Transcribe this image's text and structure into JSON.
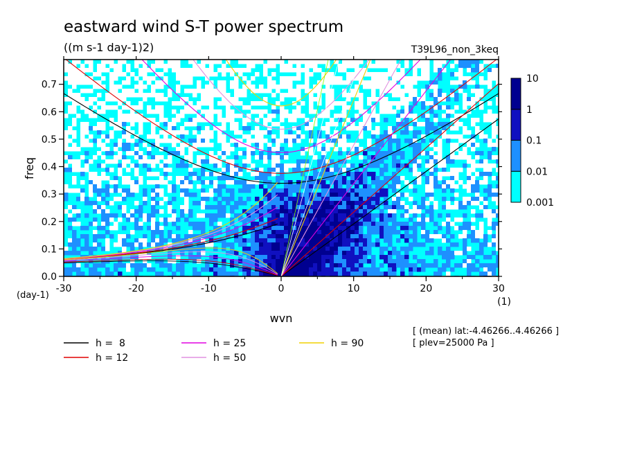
{
  "header": {
    "title": "eastward wind S-T power spectrum",
    "units": "((m s-1 day-1)2)",
    "run_name": "T39L96_non_3keq"
  },
  "meta": {
    "mean_line": "[ (mean) lat:-4.46266..4.46266 ]",
    "plev_line": "[ plev=25000 Pa ]"
  },
  "colors": {
    "level_0_001": "#00ffff",
    "level_0_01": "#1e90ff",
    "level_0_1": "#1010c0",
    "level_1": "#000090",
    "level_10": "#3000a0",
    "h8": "#000000",
    "h12": "#e00000",
    "h25": "#e000e0",
    "h50": "#e090e0",
    "h90": "#f0d000",
    "kelvin_green": "#80ff00"
  },
  "chart_data": {
    "type": "heatmap",
    "title": "eastward wind S-T power spectrum",
    "subtitle": "((m s-1 day-1)2)",
    "xlabel": "wvn",
    "x_unit": "(1)",
    "ylabel": "freq",
    "y_unit": "(day-1)",
    "xlim": [
      -30,
      30
    ],
    "ylim": [
      0,
      0.79
    ],
    "x_ticks": [
      -30,
      -20,
      -10,
      0,
      10,
      20,
      30
    ],
    "x_tick_labels": [
      "-30",
      "-20",
      "-10",
      "0",
      "10",
      "20",
      "30"
    ],
    "y_ticks": [
      0,
      0.1,
      0.2,
      0.3,
      0.4,
      0.5,
      0.6,
      0.7
    ],
    "y_tick_labels": [
      "0.0",
      "0.1",
      "0.2",
      "0.3",
      "0.4",
      "0.5",
      "0.6",
      "0.7"
    ],
    "colorbar": {
      "levels": [
        0.001,
        0.01,
        0.1,
        1,
        10
      ],
      "labels": [
        "0.001",
        "0.01",
        "0.1",
        "1",
        "10"
      ],
      "colors": [
        "#00ffff",
        "#1e90ff",
        "#1010c0",
        "#000090",
        "#3000a0"
      ]
    },
    "dispersion_curves": [
      {
        "name": "h = 8",
        "label": "h =  8",
        "h": 8,
        "color": "#000000"
      },
      {
        "name": "h = 12",
        "label": "h = 12",
        "h": 12,
        "color": "#e00000"
      },
      {
        "name": "h = 25",
        "label": "h = 25",
        "h": 25,
        "color": "#e000e0"
      },
      {
        "name": "h = 50",
        "label": "h = 50",
        "h": 50,
        "color": "#e090e0"
      },
      {
        "name": "h = 90",
        "label": "h = 90",
        "h": 90,
        "color": "#f0d000"
      }
    ],
    "legend_position": "bottom",
    "grid": false
  }
}
